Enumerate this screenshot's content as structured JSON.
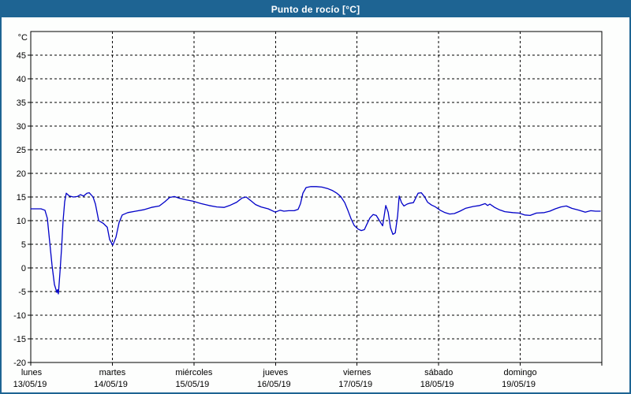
{
  "window": {
    "title": "Punto de rocío [°C]",
    "title_bg": "#1e6493",
    "title_color": "#ffffff",
    "frame_color": "#1e6493",
    "chart_bg": "#fdfefd"
  },
  "chart_data": {
    "type": "line",
    "title": "Punto de rocío [°C]",
    "y_unit_label": "°C",
    "ylabel": "",
    "xlabel": "",
    "ylim": [
      -20,
      50
    ],
    "yticks": {
      "min": -20,
      "max": 45,
      "step": 5
    },
    "grid": "dashed",
    "grid_color": "#000000",
    "axis_color": "#000000",
    "line_color": "#0000c8",
    "xlim_days": [
      0,
      7
    ],
    "x_days": [
      {
        "name": "lunes",
        "date": "13/05/19"
      },
      {
        "name": "martes",
        "date": "14/05/19"
      },
      {
        "name": "miércoles",
        "date": "15/05/19"
      },
      {
        "name": "jueves",
        "date": "16/05/19"
      },
      {
        "name": "viernes",
        "date": "17/05/19"
      },
      {
        "name": "sábado",
        "date": "18/05/19"
      },
      {
        "name": "domingo",
        "date": "19/05/19"
      }
    ],
    "series": [
      {
        "name": "Punto de rocío",
        "points": [
          [
            0.0,
            12.5
          ],
          [
            0.126,
            12.5
          ],
          [
            0.174,
            12.2
          ],
          [
            0.203,
            10.5
          ],
          [
            0.232,
            5.5
          ],
          [
            0.261,
            0.5
          ],
          [
            0.29,
            -3.5
          ],
          [
            0.309,
            -4.6
          ],
          [
            0.319,
            -5.2
          ],
          [
            0.329,
            -4.6
          ],
          [
            0.338,
            -5.5
          ],
          [
            0.358,
            -1.0
          ],
          [
            0.377,
            4.0
          ],
          [
            0.396,
            10.0
          ],
          [
            0.416,
            14.0
          ],
          [
            0.435,
            15.8
          ],
          [
            0.454,
            15.5
          ],
          [
            0.474,
            15.2
          ],
          [
            0.522,
            15.0
          ],
          [
            0.57,
            15.1
          ],
          [
            0.609,
            15.5
          ],
          [
            0.648,
            15.2
          ],
          [
            0.687,
            15.8
          ],
          [
            0.716,
            15.9
          ],
          [
            0.764,
            15.0
          ],
          [
            0.793,
            13.5
          ],
          [
            0.832,
            10.0
          ],
          [
            0.89,
            9.4
          ],
          [
            0.938,
            8.6
          ],
          [
            0.967,
            6.0
          ],
          [
            1.006,
            4.8
          ],
          [
            1.044,
            6.5
          ],
          [
            1.083,
            9.6
          ],
          [
            1.122,
            11.2
          ],
          [
            1.189,
            11.7
          ],
          [
            1.286,
            12.0
          ],
          [
            1.383,
            12.3
          ],
          [
            1.479,
            12.8
          ],
          [
            1.576,
            13.1
          ],
          [
            1.644,
            14.0
          ],
          [
            1.702,
            14.9
          ],
          [
            1.76,
            15.1
          ],
          [
            1.827,
            14.7
          ],
          [
            1.905,
            14.4
          ],
          [
            1.992,
            14.1
          ],
          [
            2.088,
            13.6
          ],
          [
            2.185,
            13.2
          ],
          [
            2.282,
            12.9
          ],
          [
            2.369,
            12.8
          ],
          [
            2.437,
            13.2
          ],
          [
            2.524,
            13.9
          ],
          [
            2.591,
            14.8
          ],
          [
            2.64,
            15.0
          ],
          [
            2.698,
            14.2
          ],
          [
            2.756,
            13.4
          ],
          [
            2.823,
            12.9
          ],
          [
            2.91,
            12.5
          ],
          [
            2.997,
            11.8
          ],
          [
            3.055,
            12.2
          ],
          [
            3.104,
            12.0
          ],
          [
            3.162,
            12.1
          ],
          [
            3.229,
            12.1
          ],
          [
            3.278,
            12.4
          ],
          [
            3.307,
            13.6
          ],
          [
            3.336,
            15.8
          ],
          [
            3.375,
            17.0
          ],
          [
            3.433,
            17.2
          ],
          [
            3.5,
            17.2
          ],
          [
            3.568,
            17.1
          ],
          [
            3.636,
            16.8
          ],
          [
            3.694,
            16.4
          ],
          [
            3.752,
            15.8
          ],
          [
            3.8,
            15.1
          ],
          [
            3.849,
            13.8
          ],
          [
            3.887,
            12.2
          ],
          [
            3.926,
            10.4
          ],
          [
            3.964,
            9.0
          ],
          [
            4.013,
            8.2
          ],
          [
            4.052,
            7.9
          ],
          [
            4.09,
            8.1
          ],
          [
            4.119,
            9.2
          ],
          [
            4.158,
            10.6
          ],
          [
            4.197,
            11.3
          ],
          [
            4.235,
            11.1
          ],
          [
            4.274,
            10.0
          ],
          [
            4.313,
            8.9
          ],
          [
            4.352,
            13.2
          ],
          [
            4.381,
            11.8
          ],
          [
            4.41,
            8.5
          ],
          [
            4.439,
            7.1
          ],
          [
            4.468,
            7.4
          ],
          [
            4.497,
            11.0
          ],
          [
            4.516,
            15.2
          ],
          [
            4.545,
            13.8
          ],
          [
            4.574,
            13.1
          ],
          [
            4.613,
            13.5
          ],
          [
            4.651,
            13.7
          ],
          [
            4.69,
            13.8
          ],
          [
            4.719,
            14.8
          ],
          [
            4.748,
            15.8
          ],
          [
            4.787,
            15.9
          ],
          [
            4.826,
            15.1
          ],
          [
            4.864,
            13.9
          ],
          [
            4.913,
            13.3
          ],
          [
            4.961,
            12.9
          ],
          [
            5.019,
            12.2
          ],
          [
            5.077,
            11.7
          ],
          [
            5.135,
            11.4
          ],
          [
            5.193,
            11.5
          ],
          [
            5.261,
            12.0
          ],
          [
            5.328,
            12.6
          ],
          [
            5.425,
            13.0
          ],
          [
            5.502,
            13.2
          ],
          [
            5.57,
            13.6
          ],
          [
            5.599,
            13.2
          ],
          [
            5.628,
            13.5
          ],
          [
            5.686,
            12.8
          ],
          [
            5.744,
            12.3
          ],
          [
            5.811,
            11.9
          ],
          [
            5.908,
            11.7
          ],
          [
            5.985,
            11.6
          ],
          [
            6.053,
            11.2
          ],
          [
            6.121,
            11.1
          ],
          [
            6.198,
            11.6
          ],
          [
            6.295,
            11.7
          ],
          [
            6.362,
            12.0
          ],
          [
            6.43,
            12.5
          ],
          [
            6.498,
            12.9
          ],
          [
            6.565,
            13.1
          ],
          [
            6.633,
            12.6
          ],
          [
            6.72,
            12.2
          ],
          [
            6.797,
            11.8
          ],
          [
            6.865,
            12.1
          ],
          [
            6.923,
            12.0
          ],
          [
            6.981,
            12.0
          ]
        ]
      }
    ]
  }
}
